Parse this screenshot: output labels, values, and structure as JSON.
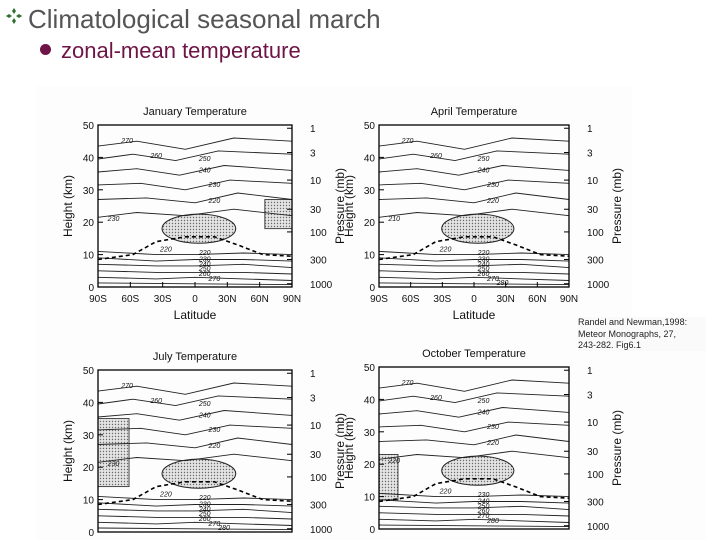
{
  "slide": {
    "title": "Climatological seasonal march",
    "subtitle": "zonal-mean temperature"
  },
  "icons": {
    "title_bullet": "diamond-cluster-icon",
    "subtitle_bullet": "filled-circle-icon"
  },
  "colors": {
    "title": "#555555",
    "subtitle": "#6e1446",
    "bullet": "#2f6e2f"
  },
  "citation": [
    "Randel and Newman,1998:",
    "Meteor Monographs, 27,",
    "243-282. Fig6.1"
  ],
  "panels": [
    {
      "title": "January  Temperature",
      "ylabel": "Height (km)",
      "y2label": "Pressure (mb)",
      "xlabel": "Latitude",
      "height_ticks": [
        "50",
        "40",
        "30",
        "20",
        "10",
        "0"
      ],
      "pressure_ticks": [
        "1",
        "3",
        "10",
        "30",
        "100",
        "300",
        "1000"
      ],
      "lat_ticks": [
        "90S",
        "60S",
        "30S",
        "0",
        "30N",
        "60N",
        "90N"
      ],
      "contour_labels": [
        "270",
        "260",
        "250",
        "240",
        "230",
        "220",
        "230",
        "220",
        "220",
        "230",
        "240",
        "250",
        "260",
        "270"
      ]
    },
    {
      "title": "April  Temperature",
      "ylabel": "Height (km)",
      "y2label": "Pressure (mb)",
      "xlabel": "Latitude",
      "height_ticks": [
        "50",
        "40",
        "30",
        "20",
        "10",
        "0"
      ],
      "pressure_ticks": [
        "1",
        "3",
        "10",
        "30",
        "100",
        "300",
        "1000"
      ],
      "lat_ticks": [
        "90S",
        "60S",
        "30S",
        "0",
        "30N",
        "60N",
        "90N"
      ],
      "contour_labels": [
        "270",
        "260",
        "250",
        "240",
        "230",
        "220",
        "210",
        "220",
        "220",
        "230",
        "240",
        "250",
        "260",
        "270",
        "280"
      ]
    },
    {
      "title": "July  Temperature",
      "ylabel": "Height (km)",
      "y2label": "Pressure (mb)",
      "xlabel": "",
      "height_ticks": [
        "50",
        "40",
        "30",
        "20",
        "10",
        "0"
      ],
      "pressure_ticks": [
        "1",
        "3",
        "10",
        "30",
        "100",
        "300",
        "1000"
      ],
      "lat_ticks": [],
      "contour_labels": [
        "270",
        "260",
        "250",
        "240",
        "230",
        "220",
        "230",
        "220",
        "220",
        "230",
        "240",
        "250",
        "260",
        "270",
        "280"
      ]
    },
    {
      "title": "October  Temperature",
      "ylabel": "Height (km)",
      "y2label": "Pressure (mb)",
      "xlabel": "",
      "height_ticks": [
        "50",
        "40",
        "30",
        "20",
        "10",
        "0"
      ],
      "pressure_ticks": [
        "1",
        "3",
        "10",
        "30",
        "100",
        "300",
        "1000"
      ],
      "lat_ticks": [],
      "contour_labels": [
        "270",
        "260",
        "250",
        "240",
        "230",
        "220",
        "220",
        "220",
        "230",
        "240",
        "250",
        "260",
        "270",
        "280"
      ]
    }
  ]
}
